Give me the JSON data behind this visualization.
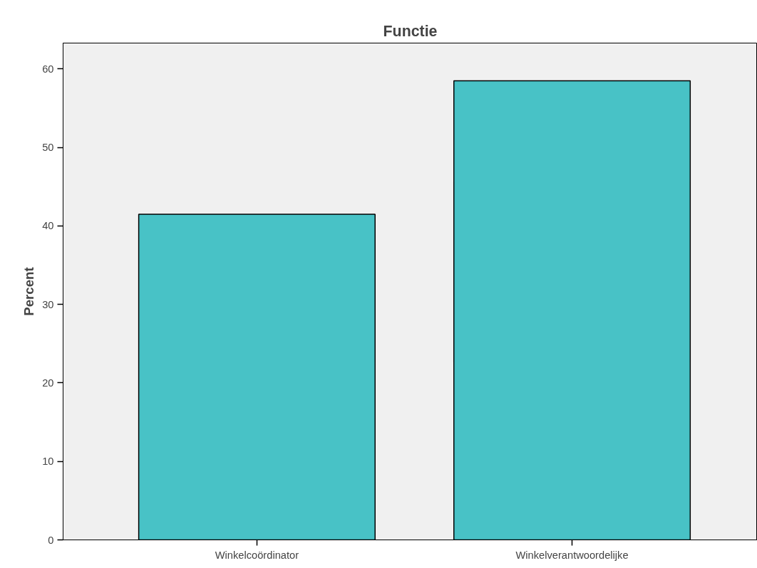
{
  "chart_data": {
    "type": "bar",
    "title": "Functie",
    "ylabel": "Percent",
    "categories": [
      "Winkelcoördinator",
      "Winkelverantwoordelijke"
    ],
    "values": [
      41.5,
      58.5
    ],
    "color": "#48c2c6",
    "ylim": [
      0,
      63.3
    ],
    "yticks": [
      0,
      10,
      20,
      30,
      40,
      50,
      60
    ],
    "grid": false
  }
}
